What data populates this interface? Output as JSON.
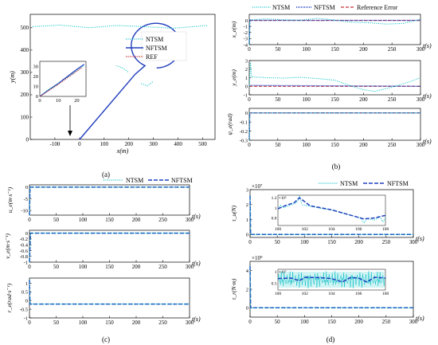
{
  "colors": {
    "ntsm": "#00BFC4",
    "nftsm": "#1f3fbf",
    "ref": "#c8303a",
    "axis": "#000000"
  },
  "panel_labels": {
    "a": "(a)",
    "b": "(b)",
    "c": "(c)",
    "d": "(d)"
  },
  "legends": {
    "a": [
      "NTSM",
      "NFTSM",
      "REF"
    ],
    "b": [
      "NTSM",
      "NFTSM",
      "Reference Error"
    ],
    "c": [
      "NTSM",
      "NFTSM"
    ],
    "d": [
      "NTSM",
      "NFTSM"
    ]
  },
  "chart_data": [
    {
      "id": "a",
      "type": "line",
      "xlabel": "x(m)",
      "ylabel": "y(m)",
      "xlim": [
        -200,
        550
      ],
      "ylim": [
        0,
        560
      ],
      "xticks": [
        "-100",
        "0",
        "100",
        "200",
        "300",
        "400",
        "500"
      ],
      "yticks": [
        "0",
        "100",
        "200",
        "300",
        "400",
        "500"
      ],
      "inset": {
        "xticks": [
          "0",
          "10",
          "20"
        ],
        "yticks": [
          "0",
          "10",
          "20",
          "30"
        ],
        "xlim": [
          0,
          25
        ],
        "ylim": [
          0,
          35
        ]
      },
      "series": [
        {
          "name": "NTSM"
        },
        {
          "name": "NFTSM"
        },
        {
          "name": "REF"
        }
      ],
      "path": {
        "line_start": [
          0,
          0
        ],
        "line_end": [
          226,
          292
        ],
        "circle_center": [
          310,
          420
        ],
        "circle_radius": 100,
        "arc_start_deg": 243.7,
        "arc_end_deg": -90
      }
    },
    {
      "id": "b1",
      "type": "line",
      "xlabel": "t(s)",
      "ylabel": "x_e(m)",
      "xlim": [
        0,
        300
      ],
      "ylim": [
        -4,
        1
      ],
      "xticks": [
        "0",
        "50",
        "100",
        "150",
        "200",
        "250",
        "300"
      ],
      "yticks": [
        "0",
        "-1",
        "-2",
        "-3",
        "-4"
      ],
      "series": [
        {
          "name": "NTSM",
          "x": [
            0,
            1,
            2,
            30,
            60,
            90,
            120,
            150,
            180,
            210,
            240,
            270,
            300
          ],
          "y": [
            -4,
            -0.3,
            0.1,
            0.25,
            0.1,
            0.05,
            0.35,
            0.05,
            -0.3,
            -0.4,
            -0.6,
            -0.5,
            0.2
          ]
        },
        {
          "name": "NFTSM",
          "x": [
            0,
            1,
            300
          ],
          "y": [
            -4,
            0,
            0
          ]
        },
        {
          "name": "Reference Error",
          "x": [
            0,
            300
          ],
          "y": [
            0,
            0
          ]
        }
      ]
    },
    {
      "id": "b2",
      "type": "line",
      "xlabel": "t(s)",
      "ylabel": "y_e(m)",
      "xlim": [
        0,
        300
      ],
      "ylim": [
        -1,
        3
      ],
      "xticks": [
        "0",
        "50",
        "100",
        "150",
        "200",
        "250",
        "300"
      ],
      "yticks": [
        "3",
        "2",
        "1",
        "0",
        "-1"
      ],
      "series": [
        {
          "name": "NTSM",
          "x": [
            0,
            2,
            4,
            30,
            60,
            90,
            120,
            150,
            180,
            200,
            220,
            250,
            280,
            300
          ],
          "y": [
            0,
            2.8,
            1.1,
            1.0,
            0.95,
            1.05,
            0.9,
            0.7,
            0.0,
            -0.4,
            -0.6,
            -0.1,
            0.5,
            1.0
          ]
        },
        {
          "name": "NFTSM",
          "x": [
            0,
            2,
            300
          ],
          "y": [
            0,
            0.1,
            0
          ]
        },
        {
          "name": "Reference Error",
          "x": [
            0,
            300
          ],
          "y": [
            0,
            0
          ]
        }
      ]
    },
    {
      "id": "b3",
      "type": "line",
      "xlabel": "t(s)",
      "ylabel": "ψ_e(rad)",
      "xlim": [
        0,
        300
      ],
      "ylim": [
        -0.3,
        0.05
      ],
      "xticks": [
        "0",
        "50",
        "100",
        "150",
        "200",
        "250",
        "300"
      ],
      "yticks": [
        "0",
        "-0.1",
        "-0.2",
        "-0.3"
      ],
      "series": [
        {
          "name": "NTSM",
          "x": [
            0,
            1,
            300
          ],
          "y": [
            -0.3,
            0,
            0
          ]
        },
        {
          "name": "NFTSM",
          "x": [
            0,
            1,
            300
          ],
          "y": [
            -0.3,
            0,
            0
          ]
        },
        {
          "name": "Reference Error",
          "x": [
            0,
            300
          ],
          "y": [
            0,
            0
          ]
        }
      ]
    },
    {
      "id": "c1",
      "type": "line",
      "xlabel": "t(s)",
      "ylabel": "u_e(m·s⁻¹)",
      "xlim": [
        0,
        300
      ],
      "ylim": [
        -12,
        1
      ],
      "xticks": [
        "0",
        "50",
        "100",
        "150",
        "200",
        "250",
        "300"
      ],
      "yticks": [
        "0",
        "-5",
        "-10"
      ],
      "series": [
        {
          "name": "NTSM",
          "x": [
            0,
            1,
            300
          ],
          "y": [
            -12,
            0,
            0
          ]
        },
        {
          "name": "NFTSM",
          "x": [
            0,
            1,
            300
          ],
          "y": [
            -12,
            0,
            0
          ]
        }
      ]
    },
    {
      "id": "c2",
      "type": "line",
      "xlabel": "t(s)",
      "ylabel": "v_e(m·s⁻¹)",
      "xlim": [
        0,
        300
      ],
      "ylim": [
        -1,
        0.1
      ],
      "xticks": [
        "0",
        "50",
        "100",
        "150",
        "200",
        "250",
        "300"
      ],
      "yticks": [
        "0",
        "-0.2",
        "-0.4",
        "-0.6",
        "-0.8",
        "-1"
      ],
      "series": [
        {
          "name": "NTSM",
          "x": [
            0,
            2,
            300
          ],
          "y": [
            -1,
            0,
            0
          ]
        },
        {
          "name": "NFTSM",
          "x": [
            0,
            2,
            300
          ],
          "y": [
            -1,
            0,
            0
          ]
        }
      ]
    },
    {
      "id": "c3",
      "type": "line",
      "xlabel": "t(s)",
      "ylabel": "r_e(rad·s⁻¹)",
      "xlim": [
        0,
        300
      ],
      "ylim": [
        -1,
        1.3
      ],
      "xticks": [
        "0",
        "50",
        "100",
        "150",
        "200",
        "250",
        "300"
      ],
      "yticks": [
        "1",
        "0.5",
        "0",
        "-0.5",
        "-1"
      ],
      "series": [
        {
          "name": "NTSM",
          "x": [
            0,
            1,
            300
          ],
          "y": [
            1.2,
            -0.2,
            -0.2
          ]
        },
        {
          "name": "NFTSM",
          "x": [
            0,
            1,
            300
          ],
          "y": [
            1.2,
            -0.2,
            -0.2
          ]
        }
      ]
    },
    {
      "id": "d1",
      "type": "line",
      "xlabel": "t(s)",
      "ylabel": "τ_u(N)",
      "exponent": "×10⁷",
      "xlim": [
        0,
        300
      ],
      "ylim": [
        -0.2,
        3
      ],
      "xticks": [
        "0",
        "50",
        "100",
        "150",
        "200",
        "250",
        "300"
      ],
      "yticks": [
        "3",
        "2",
        "1",
        "0"
      ],
      "inset": {
        "exponent": "×10⁵",
        "xlim": [
          100,
          108
        ],
        "ylim": [
          0.65,
          1.25
        ],
        "xticks": [
          "100",
          "102",
          "104",
          "106",
          "108"
        ],
        "yticks": [
          "1.2",
          "1",
          "0.8"
        ],
        "ntsm": {
          "x": [
            100,
            100.2,
            100.4,
            101.4,
            101.6,
            101.8,
            102.4,
            103.2,
            104,
            104.8,
            105.6,
            106.2,
            106.4,
            106.6,
            107.2,
            107.6,
            107.8,
            108
          ],
          "y": [
            0.98,
            1.05,
            1.0,
            1.1,
            1.22,
            1.06,
            1.03,
            0.99,
            0.96,
            0.9,
            0.84,
            0.79,
            0.7,
            0.78,
            0.76,
            0.82,
            0.72,
            0.8
          ]
        },
        "nftsm": {
          "x": [
            100,
            100.6,
            101.2,
            101.6,
            102.4,
            103.2,
            104,
            104.8,
            105.6,
            106.4,
            107.2,
            108
          ],
          "y": [
            0.98,
            1.05,
            1.1,
            1.2,
            1.04,
            1.0,
            0.96,
            0.9,
            0.84,
            0.78,
            0.8,
            0.85
          ]
        }
      },
      "series": [
        {
          "name": "NTSM",
          "x": [
            0,
            1,
            300
          ],
          "y": [
            2.6,
            0,
            0
          ]
        },
        {
          "name": "NFTSM",
          "x": [
            0,
            1,
            300
          ],
          "y": [
            2.6,
            0,
            0
          ]
        }
      ]
    },
    {
      "id": "d2",
      "type": "line",
      "xlabel": "t(s)",
      "ylabel": "τ_r(N·m)",
      "exponent": "×10⁹",
      "xlim": [
        0,
        300
      ],
      "ylim": [
        -1,
        5
      ],
      "xticks": [
        "0",
        "50",
        "100",
        "150",
        "200",
        "250",
        "300"
      ],
      "yticks": [
        "4",
        "2",
        "0"
      ],
      "inset": {
        "exponent": "×10⁷",
        "xlim": [
          100,
          108
        ],
        "ylim": [
          0.2,
          1.1
        ],
        "xticks": [
          "100",
          "102",
          "104",
          "106",
          "108"
        ],
        "yticks": [
          "1",
          "0.5"
        ],
        "nftsm": {
          "x": [
            100,
            101,
            101.6,
            102,
            103,
            104,
            104.8,
            105.4,
            106,
            106.6,
            107.2,
            108
          ],
          "y": [
            0.7,
            0.72,
            0.6,
            0.75,
            0.74,
            0.7,
            0.55,
            0.74,
            0.72,
            0.55,
            0.75,
            0.72
          ]
        }
      },
      "series": [
        {
          "name": "NTSM",
          "x": [
            0,
            1,
            300
          ],
          "y": [
            4.5,
            0,
            0
          ]
        },
        {
          "name": "NFTSM",
          "x": [
            0,
            1,
            300
          ],
          "y": [
            4.5,
            0,
            0
          ]
        }
      ]
    }
  ]
}
